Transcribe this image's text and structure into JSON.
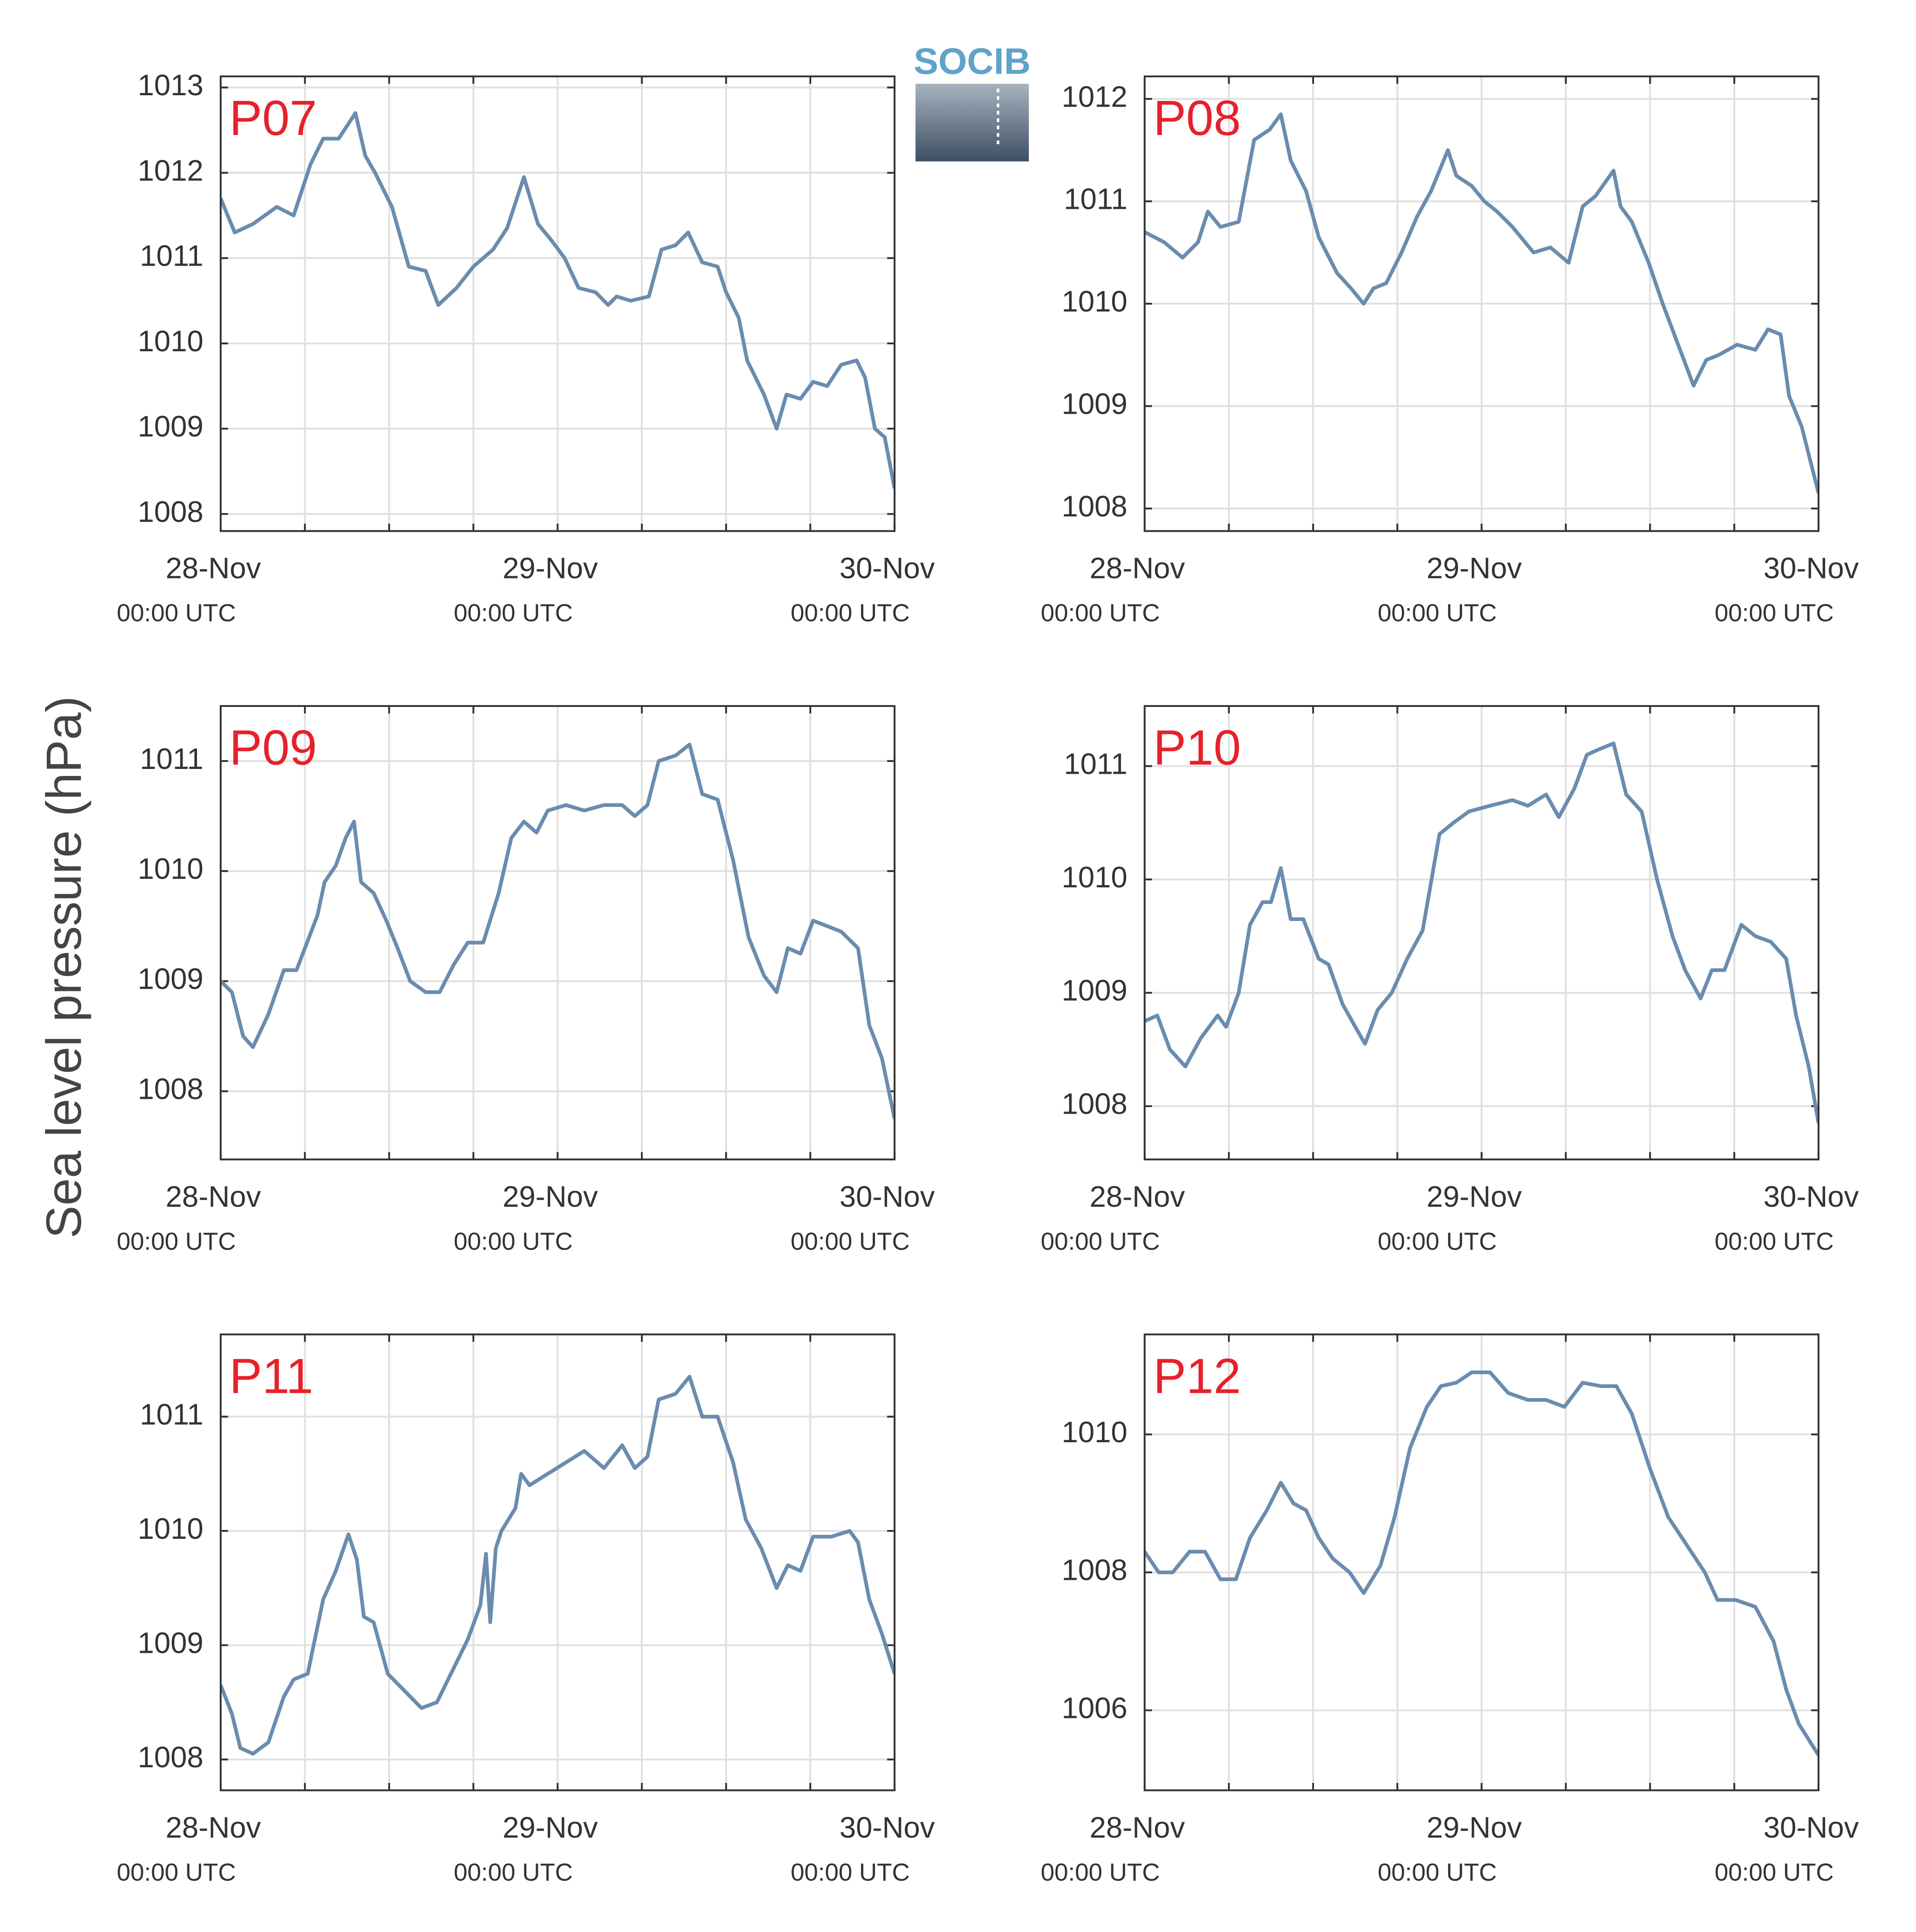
{
  "ylabel": "Sea level pressure (hPa)",
  "logo": "SOCIB",
  "chart_data": [
    {
      "type": "line",
      "title": "P07",
      "title_color": "#e8202a",
      "color": "#6a8caf",
      "grid": true,
      "xlim": [
        0,
        48
      ],
      "xticks": [
        {
          "value": 0,
          "label": "28-Nov",
          "sublabel": "00:00 UTC"
        },
        {
          "value": 24,
          "label": "29-Nov",
          "sublabel": "00:00 UTC"
        },
        {
          "value": 48,
          "label": "30-Nov",
          "sublabel": "00:00 UTC"
        }
      ],
      "xminorticks": [
        6,
        12,
        18,
        30,
        36,
        42
      ],
      "ylim": [
        1007.8,
        1013.13
      ],
      "yticks": [
        1008,
        1009,
        1010,
        1011,
        1012,
        1013
      ],
      "x": [
        0,
        1,
        2.3,
        4,
        5.2,
        6.4,
        7.3,
        8.4,
        9.6,
        10.3,
        11,
        12.2,
        13.4,
        14.6,
        15.5,
        16.8,
        18,
        19.4,
        20.4,
        21.6,
        22.6,
        23.6,
        24.5,
        25.5,
        26.7,
        27.6,
        28.2,
        29.2,
        30.5,
        31.4,
        32.4,
        33.3,
        34.3,
        35.4,
        36,
        36.9,
        37.5,
        38.7,
        39.6,
        40.3,
        41.3,
        42.2,
        43.2,
        44.2,
        45.3,
        45.9,
        46.6,
        47.3,
        48
      ],
      "values": [
        1011.7,
        1011.3,
        1011.4,
        1011.6,
        1011.5,
        1012.1,
        1012.4,
        1012.4,
        1012.7,
        1012.2,
        1012.0,
        1011.6,
        1010.9,
        1010.85,
        1010.45,
        1010.65,
        1010.9,
        1011.1,
        1011.35,
        1011.95,
        1011.4,
        1011.2,
        1011.0,
        1010.65,
        1010.6,
        1010.45,
        1010.55,
        1010.5,
        1010.55,
        1011.1,
        1011.15,
        1011.3,
        1010.95,
        1010.9,
        1010.6,
        1010.3,
        1009.8,
        1009.4,
        1009.0,
        1009.4,
        1009.35,
        1009.55,
        1009.5,
        1009.75,
        1009.8,
        1009.6,
        1009.0,
        1008.9,
        1008.3
      ]
    },
    {
      "type": "line",
      "title": "P08",
      "title_color": "#e8202a",
      "color": "#6a8caf",
      "grid": true,
      "xlim": [
        0,
        48
      ],
      "xticks": [
        {
          "value": 0,
          "label": "28-Nov",
          "sublabel": "00:00 UTC"
        },
        {
          "value": 24,
          "label": "29-Nov",
          "sublabel": "00:00 UTC"
        },
        {
          "value": 48,
          "label": "30-Nov",
          "sublabel": "00:00 UTC"
        }
      ],
      "xminorticks": [
        6,
        12,
        18,
        30,
        36,
        42
      ],
      "ylim": [
        1007.78,
        1012.22
      ],
      "yticks": [
        1008,
        1009,
        1010,
        1011,
        1012
      ],
      "x": [
        0,
        1.4,
        2.7,
        3.8,
        4.5,
        5.4,
        6.7,
        7.8,
        8.9,
        9.7,
        10.4,
        11.5,
        12.4,
        13.7,
        14.7,
        15.6,
        16.3,
        17.2,
        18.3,
        19.4,
        20.4,
        21.6,
        22.2,
        23.3,
        24.2,
        25.1,
        26.2,
        27.7,
        28.9,
        30.2,
        31.2,
        32.1,
        33.4,
        33.9,
        34.7,
        35.9,
        36.9,
        38,
        39.1,
        40,
        40.9,
        42.2,
        43.5,
        44.4,
        45.3,
        45.9,
        46.8,
        48
      ],
      "values": [
        1010.7,
        1010.6,
        1010.45,
        1010.6,
        1010.9,
        1010.75,
        1010.8,
        1011.6,
        1011.7,
        1011.85,
        1011.4,
        1011.1,
        1010.65,
        1010.3,
        1010.15,
        1010.0,
        1010.15,
        1010.2,
        1010.5,
        1010.85,
        1011.1,
        1011.5,
        1011.25,
        1011.15,
        1011.0,
        1010.9,
        1010.75,
        1010.5,
        1010.55,
        1010.4,
        1010.95,
        1011.05,
        1011.3,
        1010.95,
        1010.8,
        1010.4,
        1010.0,
        1009.6,
        1009.2,
        1009.45,
        1009.5,
        1009.6,
        1009.55,
        1009.75,
        1009.7,
        1009.1,
        1008.8,
        1008.15
      ]
    },
    {
      "type": "line",
      "title": "P09",
      "title_color": "#e8202a",
      "color": "#6a8caf",
      "grid": true,
      "xlim": [
        0,
        48
      ],
      "xticks": [
        {
          "value": 0,
          "label": "28-Nov",
          "sublabel": "00:00 UTC"
        },
        {
          "value": 24,
          "label": "29-Nov",
          "sublabel": "00:00 UTC"
        },
        {
          "value": 48,
          "label": "30-Nov",
          "sublabel": "00:00 UTC"
        }
      ],
      "xminorticks": [
        6,
        12,
        18,
        30,
        36,
        42
      ],
      "ylim": [
        1007.38,
        1011.5
      ],
      "yticks": [
        1008,
        1009,
        1010,
        1011
      ],
      "x": [
        0,
        0.8,
        1.6,
        2.3,
        3.4,
        4.5,
        5.4,
        6,
        6.9,
        7.4,
        8.2,
        8.9,
        9.5,
        10,
        10.9,
        11.8,
        12.6,
        13.5,
        14.6,
        15.6,
        16.6,
        17.6,
        18.7,
        19.8,
        20.7,
        21.6,
        22.5,
        23.3,
        24.6,
        25.9,
        27.3,
        28.6,
        29.5,
        30.4,
        31.2,
        32.4,
        33.4,
        34.3,
        35.4,
        36.5,
        37.6,
        38.7,
        39.6,
        40.4,
        41.3,
        42.2,
        43.2,
        44.2,
        45.4,
        46.2,
        47.1,
        48
      ],
      "values": [
        1009.0,
        1008.9,
        1008.5,
        1008.4,
        1008.7,
        1009.1,
        1009.1,
        1009.3,
        1009.6,
        1009.9,
        1010.05,
        1010.3,
        1010.45,
        1009.9,
        1009.8,
        1009.55,
        1009.3,
        1009.0,
        1008.9,
        1008.9,
        1009.15,
        1009.35,
        1009.35,
        1009.8,
        1010.3,
        1010.45,
        1010.35,
        1010.55,
        1010.6,
        1010.55,
        1010.6,
        1010.6,
        1010.5,
        1010.6,
        1011.0,
        1011.05,
        1011.15,
        1010.7,
        1010.65,
        1010.1,
        1009.4,
        1009.05,
        1008.9,
        1009.3,
        1009.25,
        1009.55,
        1009.5,
        1009.45,
        1009.3,
        1008.6,
        1008.3,
        1007.75
      ]
    },
    {
      "type": "line",
      "title": "P10",
      "title_color": "#e8202a",
      "color": "#6a8caf",
      "grid": true,
      "xlim": [
        0,
        48
      ],
      "xticks": [
        {
          "value": 0,
          "label": "28-Nov",
          "sublabel": "00:00 UTC"
        },
        {
          "value": 24,
          "label": "29-Nov",
          "sublabel": "00:00 UTC"
        },
        {
          "value": 48,
          "label": "30-Nov",
          "sublabel": "00:00 UTC"
        }
      ],
      "xminorticks": [
        6,
        12,
        18,
        30,
        36,
        42
      ],
      "ylim": [
        1007.53,
        1011.53
      ],
      "yticks": [
        1008,
        1009,
        1010,
        1011
      ],
      "x": [
        0,
        0.9,
        1.8,
        2.9,
        4,
        5.2,
        5.8,
        6.7,
        7.5,
        8.4,
        9,
        9.7,
        10.4,
        11.3,
        12.4,
        13.1,
        14.1,
        15,
        15.7,
        16.6,
        17.6,
        18.7,
        19.8,
        21,
        22,
        23.1,
        24.6,
        26.2,
        27.3,
        28.6,
        29.5,
        30.6,
        31.5,
        32.4,
        33.4,
        34.3,
        35.4,
        36.5,
        37.6,
        38.5,
        39.6,
        40.4,
        41.3,
        42.5,
        43.5,
        44.6,
        45.7,
        46.4,
        47.3,
        48
      ],
      "values": [
        1008.75,
        1008.8,
        1008.5,
        1008.35,
        1008.6,
        1008.8,
        1008.7,
        1009.0,
        1009.6,
        1009.8,
        1009.8,
        1010.1,
        1009.65,
        1009.65,
        1009.3,
        1009.25,
        1008.9,
        1008.7,
        1008.55,
        1008.85,
        1009.0,
        1009.3,
        1009.55,
        1010.4,
        1010.5,
        1010.6,
        1010.65,
        1010.7,
        1010.65,
        1010.75,
        1010.55,
        1010.8,
        1011.1,
        1011.15,
        1011.2,
        1010.75,
        1010.6,
        1010.0,
        1009.5,
        1009.2,
        1008.95,
        1009.2,
        1009.2,
        1009.6,
        1009.5,
        1009.45,
        1009.3,
        1008.8,
        1008.35,
        1007.85
      ]
    },
    {
      "type": "line",
      "title": "P11",
      "title_color": "#e8202a",
      "color": "#6a8caf",
      "grid": true,
      "xlim": [
        0,
        48
      ],
      "xticks": [
        {
          "value": 0,
          "label": "28-Nov",
          "sublabel": "00:00 UTC"
        },
        {
          "value": 24,
          "label": "29-Nov",
          "sublabel": "00:00 UTC"
        },
        {
          "value": 48,
          "label": "30-Nov",
          "sublabel": "00:00 UTC"
        }
      ],
      "xminorticks": [
        6,
        12,
        18,
        30,
        36,
        42
      ],
      "ylim": [
        1007.73,
        1011.72
      ],
      "yticks": [
        1008,
        1009,
        1010,
        1011
      ],
      "x": [
        0,
        0.8,
        1.4,
        2.3,
        3.4,
        4.5,
        5.2,
        6.2,
        7.3,
        8.2,
        9.1,
        9.7,
        10.2,
        10.9,
        11.9,
        13.1,
        14.3,
        15.4,
        16.6,
        17.6,
        18.5,
        18.9,
        19.2,
        19.6,
        20,
        21,
        21.4,
        22,
        23.3,
        24.6,
        25.9,
        27.3,
        28.6,
        29.5,
        30.4,
        31.2,
        32.4,
        33.4,
        34.3,
        35.4,
        36.5,
        37.4,
        38.5,
        39.6,
        40.4,
        41.3,
        42.2,
        43.5,
        44.8,
        45.4,
        46.2,
        47.1,
        48
      ],
      "values": [
        1008.65,
        1008.4,
        1008.1,
        1008.05,
        1008.15,
        1008.55,
        1008.7,
        1008.75,
        1009.4,
        1009.65,
        1009.97,
        1009.75,
        1009.25,
        1009.2,
        1008.75,
        1008.6,
        1008.45,
        1008.5,
        1008.8,
        1009.05,
        1009.35,
        1009.8,
        1009.2,
        1009.85,
        1010.0,
        1010.2,
        1010.5,
        1010.4,
        1010.5,
        1010.6,
        1010.7,
        1010.55,
        1010.75,
        1010.55,
        1010.65,
        1011.15,
        1011.2,
        1011.35,
        1011.0,
        1011.0,
        1010.6,
        1010.1,
        1009.85,
        1009.5,
        1009.7,
        1009.65,
        1009.95,
        1009.95,
        1010.0,
        1009.9,
        1009.4,
        1009.1,
        1008.75
      ]
    },
    {
      "type": "line",
      "title": "P12",
      "title_color": "#e8202a",
      "color": "#6a8caf",
      "grid": true,
      "xlim": [
        0,
        48
      ],
      "xticks": [
        {
          "value": 0,
          "label": "28-Nov",
          "sublabel": "00:00 UTC"
        },
        {
          "value": 24,
          "label": "29-Nov",
          "sublabel": "00:00 UTC"
        },
        {
          "value": 48,
          "label": "30-Nov",
          "sublabel": "00:00 UTC"
        }
      ],
      "xminorticks": [
        6,
        12,
        18,
        30,
        36,
        42
      ],
      "ylim": [
        1004.84,
        1011.45
      ],
      "yticks": [
        1006,
        1008,
        1010
      ],
      "x": [
        0,
        1,
        2,
        3.2,
        4.3,
        5.4,
        6.5,
        7.5,
        8.7,
        9.7,
        10.6,
        11.5,
        12.4,
        13.4,
        14.6,
        15.6,
        16.8,
        17.8,
        18.9,
        20.1,
        21.1,
        22.2,
        23.3,
        24.6,
        25.9,
        27.3,
        28.6,
        29.9,
        31.2,
        32.5,
        33.6,
        34.7,
        36,
        37.3,
        38.6,
        39.9,
        40.8,
        42.1,
        43.5,
        44.8,
        45.7,
        46.6,
        48
      ],
      "values": [
        1008.3,
        1008.0,
        1008.0,
        1008.3,
        1008.3,
        1007.9,
        1007.9,
        1008.5,
        1008.9,
        1009.3,
        1009.0,
        1008.9,
        1008.5,
        1008.2,
        1008.0,
        1007.7,
        1008.1,
        1008.8,
        1009.8,
        1010.4,
        1010.7,
        1010.75,
        1010.9,
        1010.9,
        1010.6,
        1010.5,
        1010.5,
        1010.4,
        1010.75,
        1010.7,
        1010.7,
        1010.3,
        1009.5,
        1008.8,
        1008.4,
        1008.0,
        1007.6,
        1007.6,
        1007.5,
        1007.0,
        1006.3,
        1005.8,
        1005.35
      ]
    }
  ]
}
